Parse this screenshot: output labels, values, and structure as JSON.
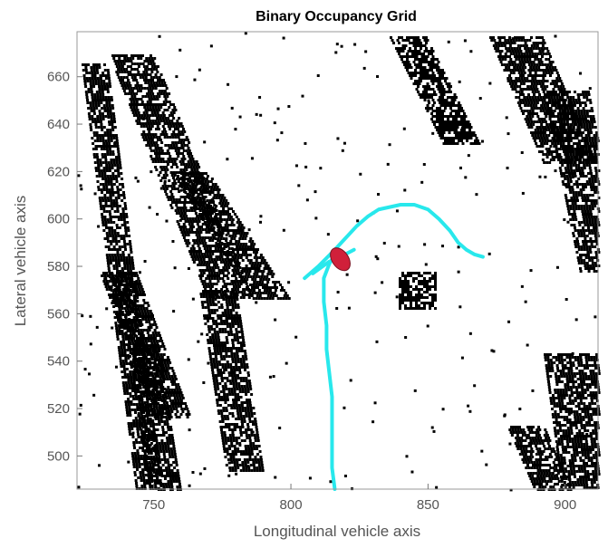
{
  "chart_data": {
    "type": "heatmap",
    "title": "Binary Occupancy Grid",
    "xlabel": "Longitudinal vehicle axis",
    "ylabel": "Lateral vehicle axis",
    "xlim": [
      722,
      912
    ],
    "ylim": [
      486,
      679
    ],
    "x_ticks": [
      "750",
      "800",
      "850",
      "900"
    ],
    "y_ticks": [
      "500",
      "520",
      "540",
      "560",
      "580",
      "600",
      "620",
      "640",
      "660"
    ],
    "x_tick_values": [
      750,
      800,
      850,
      900
    ],
    "y_tick_values": [
      500,
      520,
      540,
      560,
      580,
      600,
      620,
      640,
      660
    ],
    "grid": false,
    "cell_colors": {
      "occupied": "#000000",
      "free": "#ffffff"
    },
    "series": [
      {
        "type": "line",
        "color": "#28e8ec",
        "x": [
          816,
          815,
          815,
          815,
          815,
          814,
          813,
          813,
          812,
          812,
          812,
          813,
          814,
          816
        ],
        "y": [
          486,
          495,
          505,
          515,
          525,
          535,
          545,
          555,
          565,
          570,
          575,
          578,
          581,
          585
        ]
      },
      {
        "type": "line",
        "color": "#28e8ec",
        "x": [
          805,
          810,
          816,
          820,
          824,
          828,
          832,
          836,
          840,
          845,
          850,
          854,
          858,
          861,
          864,
          867,
          870
        ],
        "y": [
          575,
          580,
          587,
          592,
          597,
          601,
          604,
          605,
          606,
          606,
          604,
          600,
          595,
          590,
          587,
          585,
          584
        ]
      },
      {
        "type": "line",
        "color": "#28e8ec",
        "x": [
          808,
          814,
          818,
          823
        ],
        "y": [
          577,
          582,
          584,
          587
        ]
      }
    ],
    "vehicle_marker": {
      "x": 818,
      "y": 583,
      "color": "#d0203a",
      "outline": "#7a1020"
    }
  }
}
